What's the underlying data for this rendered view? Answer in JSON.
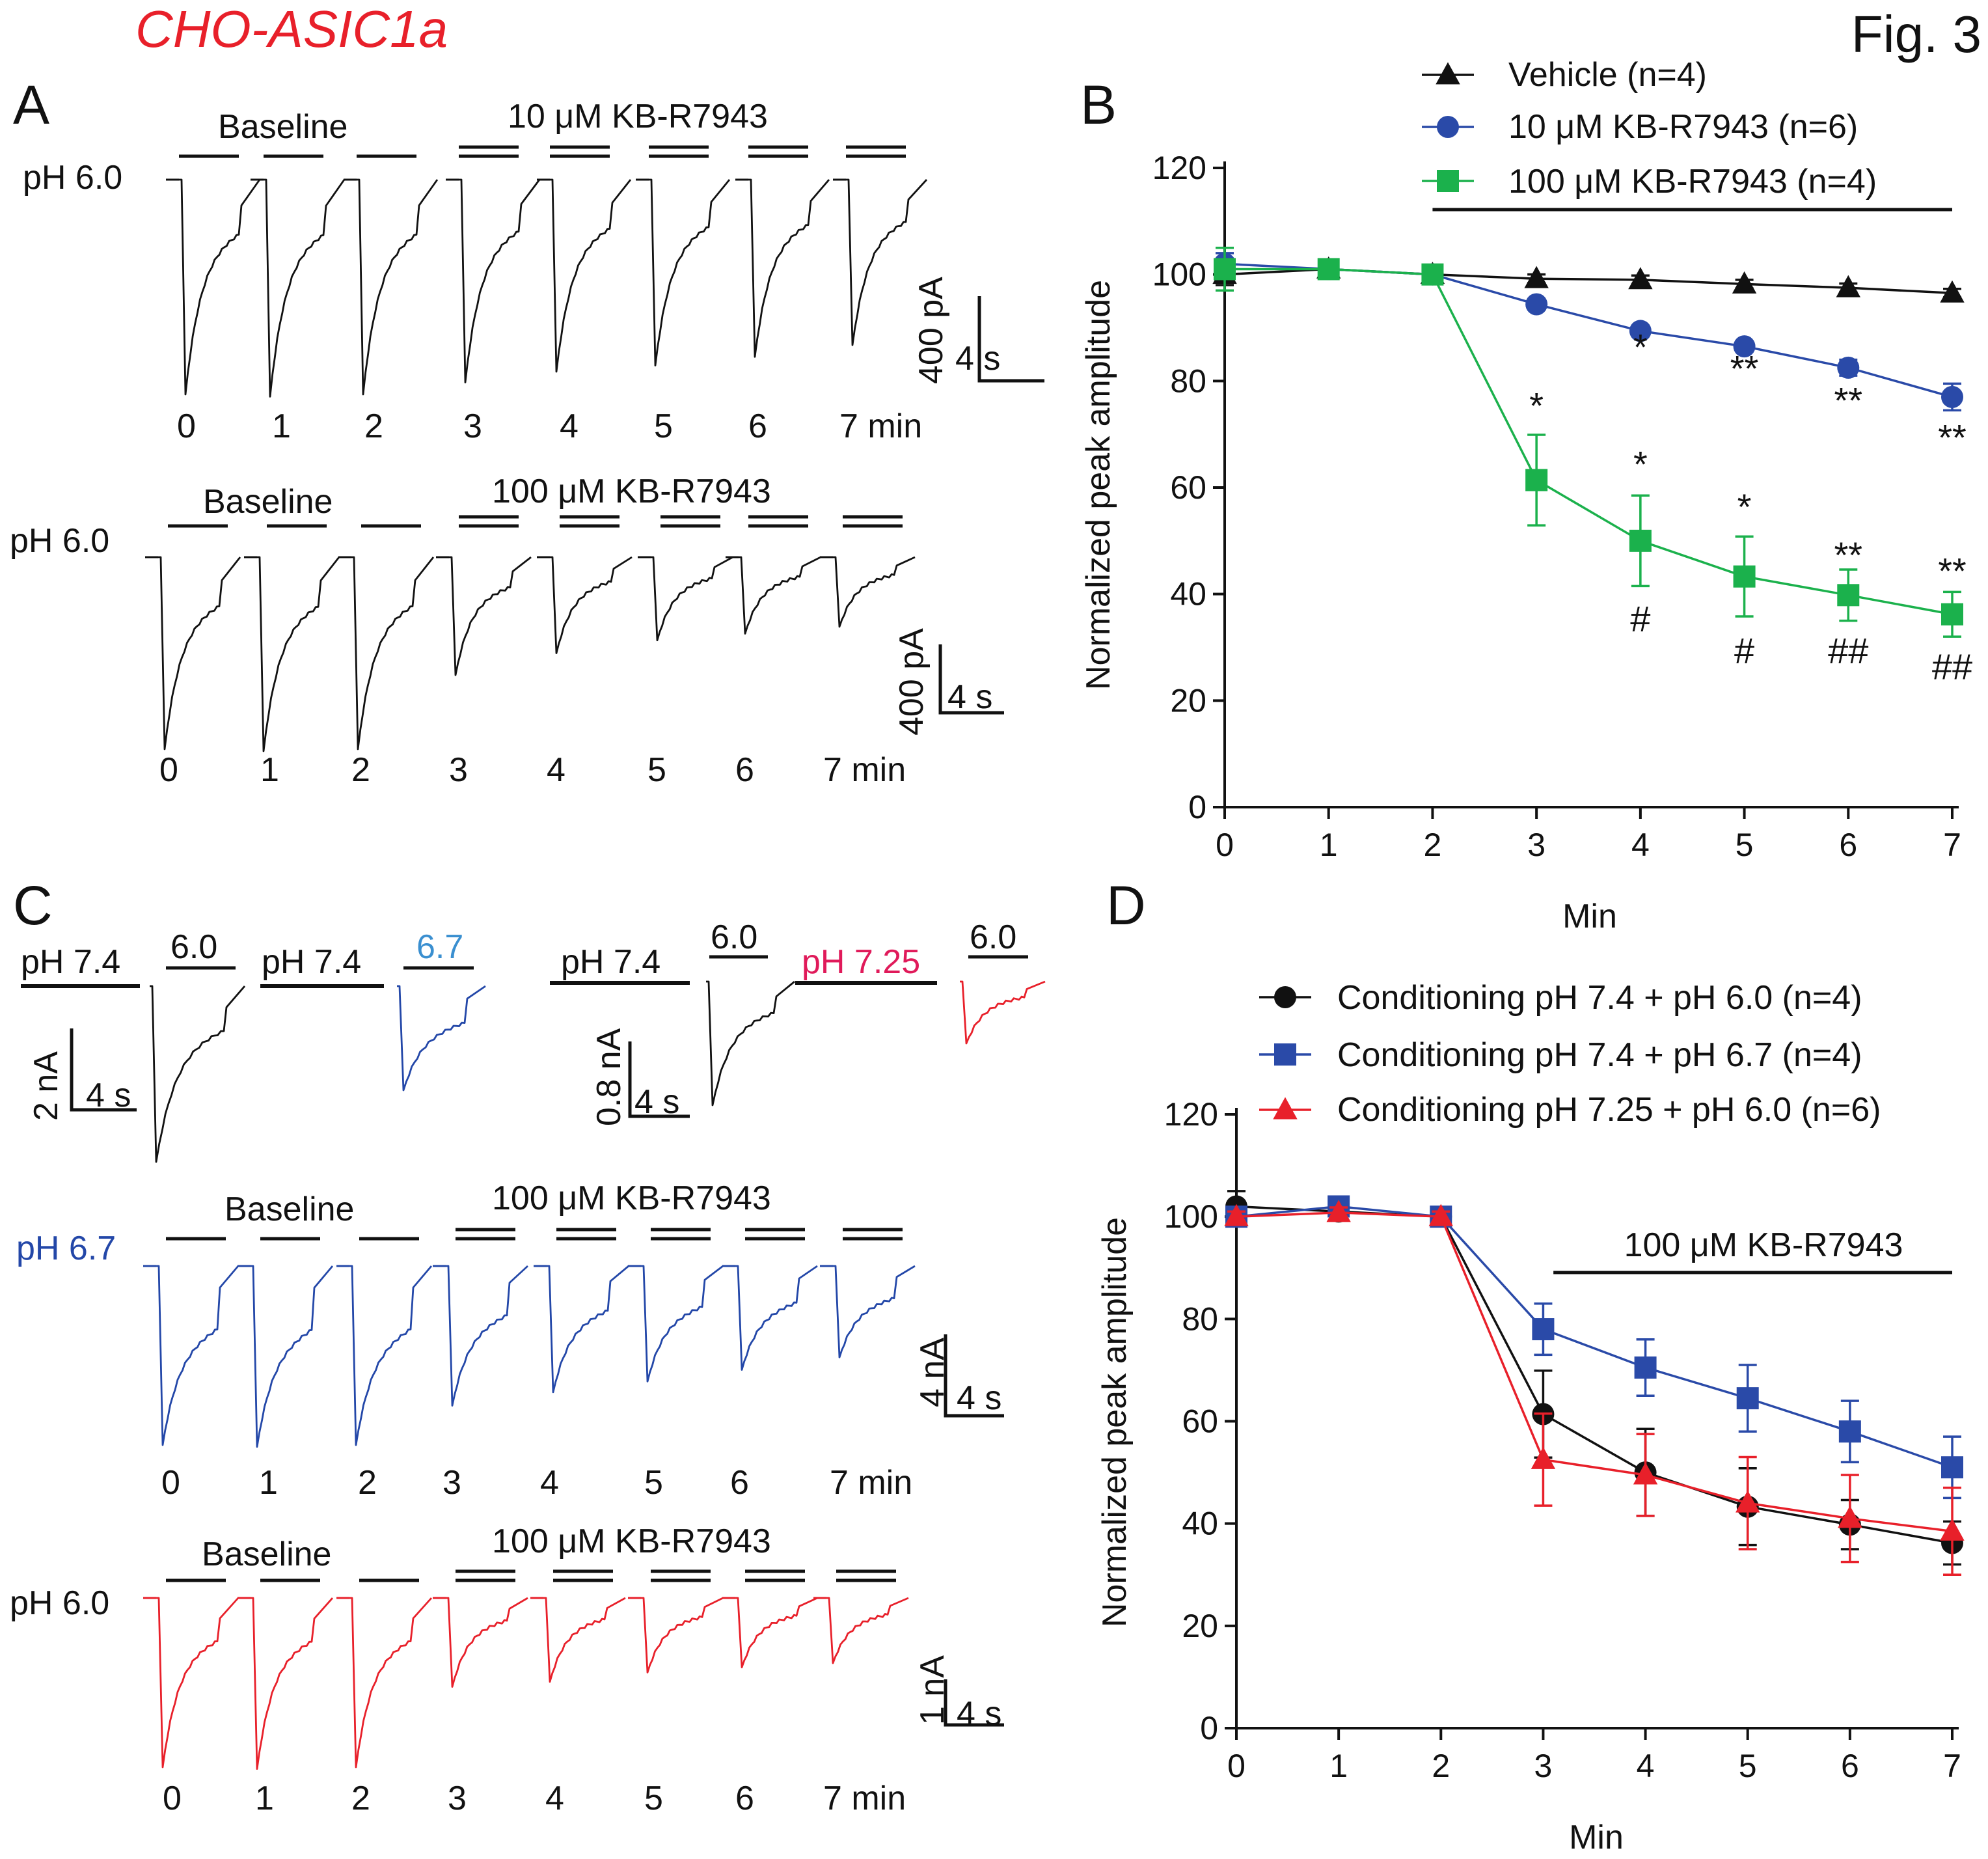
{
  "figure": {
    "title": "CHO-ASIC1a",
    "fig_label": "Fig. 3",
    "title_color": "#e8202a"
  },
  "panel_A": {
    "letter": "A",
    "colors": {
      "trace": "#111111"
    },
    "row1": {
      "ph": "pH 6.0",
      "baseline": "Baseline",
      "drug": "10 μM KB-R7943",
      "scale_y": "400 pA",
      "scale_x": "4 s",
      "times": [
        "0",
        "1",
        "2",
        "3",
        "4",
        "5",
        "6",
        "7 min"
      ],
      "peaks": [
        100,
        101,
        100,
        94.4,
        89.4,
        86.5,
        82.5,
        77
      ]
    },
    "row2": {
      "ph": "pH 6.0",
      "baseline": "Baseline",
      "drug": "100 μM KB-R7943",
      "scale_y": "400 pA",
      "scale_x": "4 s",
      "times": [
        "0",
        "1",
        "2",
        "3",
        "4",
        "5",
        "6",
        "7 min"
      ],
      "peaks": [
        100,
        101,
        100,
        61.4,
        50,
        43.3,
        39.8,
        36.2
      ]
    }
  },
  "panel_C": {
    "letter": "C",
    "colors": {
      "black": "#111111",
      "blue": "#2347a8",
      "light_blue": "#3a8fd0",
      "red": "#e8202a",
      "magenta": "#e01a5a"
    },
    "inset_left": {
      "ph1": "pH 7.4",
      "test1": "6.0",
      "ph2": "pH 7.4",
      "test2": "6.7",
      "scale_y": "2 nA",
      "scale_x": "4 s"
    },
    "inset_right": {
      "ph1": "pH 7.4",
      "test1": "6.0",
      "ph2": "pH 7.25",
      "test2": "6.0",
      "scale_y": "0.8 nA",
      "scale_x": "4 s"
    },
    "row1": {
      "ph": "pH 6.7",
      "baseline": "Baseline",
      "drug": "100 μM KB-R7943",
      "scale_y": "4 nA",
      "scale_x": "4 s",
      "times": [
        "0",
        "1",
        "2",
        "3",
        "4",
        "5",
        "6",
        "7 min"
      ],
      "peaks": [
        100,
        101,
        100,
        78,
        70.5,
        64.5,
        58,
        51
      ]
    },
    "row2": {
      "ph": "pH 6.0",
      "baseline": "Baseline",
      "drug": "100 μM KB-R7943",
      "scale_y": "1 nA",
      "scale_x": "4 s",
      "times": [
        "0",
        "1",
        "2",
        "3",
        "4",
        "5",
        "6",
        "7 min"
      ],
      "peaks": [
        100,
        101,
        100,
        52.5,
        49.5,
        44,
        41,
        38.5
      ]
    }
  },
  "chart_data": [
    {
      "panel": "B",
      "type": "line",
      "xlabel": "Min",
      "ylabel": "Normalized peak amplitude",
      "x": [
        0,
        1,
        2,
        3,
        4,
        5,
        6,
        7
      ],
      "xlim": [
        0,
        7
      ],
      "ylim": [
        0,
        120
      ],
      "yticks": [
        0,
        20,
        40,
        60,
        80,
        100,
        120
      ],
      "legend_position": "top-right",
      "drug_bar_label": "",
      "drug_bar_range": [
        2,
        7
      ],
      "series": [
        {
          "name": "Vehicle (n=4)",
          "marker": "triangle",
          "color": "#111111",
          "values": [
            100,
            101,
            100,
            99.2,
            99,
            98.2,
            97.5,
            96.5
          ],
          "errors": [
            2,
            1,
            1,
            0.8,
            0.8,
            0.8,
            0.8,
            0.8
          ]
        },
        {
          "name": "10 μM KB-R7943 (n=6)",
          "marker": "circle",
          "color": "#2a4aa8",
          "values": [
            102,
            101,
            100,
            94.4,
            89.4,
            86.5,
            82.5,
            77
          ],
          "errors": [
            2,
            1,
            1,
            1,
            1,
            1,
            1.5,
            2.5
          ]
        },
        {
          "name": "100 μM KB-R7943 (n=4)",
          "marker": "square",
          "color": "#1bb14c",
          "values": [
            101,
            101,
            100,
            61.4,
            50,
            43.3,
            39.8,
            36.2
          ],
          "errors": [
            4,
            1.5,
            1,
            8.5,
            8.5,
            7.5,
            4.8,
            4.2
          ]
        }
      ],
      "annotations": [
        {
          "x": 4,
          "y": 84,
          "text": "*"
        },
        {
          "x": 5,
          "y": 80,
          "text": "**"
        },
        {
          "x": 6,
          "y": 74,
          "text": "**"
        },
        {
          "x": 7,
          "y": 67,
          "text": "**"
        },
        {
          "x": 3,
          "y": 73,
          "text": "*"
        },
        {
          "x": 4,
          "y": 62,
          "text": "*"
        },
        {
          "x": 5,
          "y": 54,
          "text": "*"
        },
        {
          "x": 6,
          "y": 45,
          "text": "**"
        },
        {
          "x": 7,
          "y": 42,
          "text": "**"
        },
        {
          "x": 4,
          "y": 33,
          "text": "#"
        },
        {
          "x": 5,
          "y": 27,
          "text": "#"
        },
        {
          "x": 6,
          "y": 27,
          "text": "##"
        },
        {
          "x": 7,
          "y": 24,
          "text": "##"
        }
      ]
    },
    {
      "panel": "D",
      "type": "line",
      "xlabel": "Min",
      "ylabel": "Normalized peak amplitude",
      "x": [
        0,
        1,
        2,
        3,
        4,
        5,
        6,
        7
      ],
      "xlim": [
        0,
        7
      ],
      "ylim": [
        0,
        120
      ],
      "yticks": [
        0,
        20,
        40,
        60,
        80,
        100,
        120
      ],
      "legend_position": "top",
      "drug_bar_label": "100 μM KB-R7943",
      "drug_bar_range": [
        3.1,
        7
      ],
      "series": [
        {
          "name": "Conditioning pH 7.4 + pH 6.0 (n=4)",
          "marker": "circle",
          "color": "#111111",
          "values": [
            102,
            101,
            100,
            61.4,
            50,
            43.3,
            39.8,
            36.2
          ],
          "errors": [
            3,
            1.5,
            1,
            8.5,
            8.5,
            7.5,
            4.8,
            4.2
          ]
        },
        {
          "name": "Conditioning pH 7.4 + pH 6.7 (n=4)",
          "marker": "square",
          "color": "#2a4aa8",
          "values": [
            100,
            102,
            100,
            78,
            70.5,
            64.5,
            58,
            51
          ],
          "errors": [
            1,
            1,
            1,
            5,
            5.5,
            6.5,
            6,
            6
          ]
        },
        {
          "name": "Conditioning pH 7.25 + pH 6.0 (n=6)",
          "marker": "triangle",
          "color": "#e8202a",
          "values": [
            100,
            100.8,
            100,
            52.5,
            49.5,
            44,
            41,
            38.5
          ],
          "errors": [
            1,
            1,
            1,
            9,
            8,
            9,
            8.5,
            8.5
          ]
        }
      ],
      "annotations": []
    }
  ]
}
